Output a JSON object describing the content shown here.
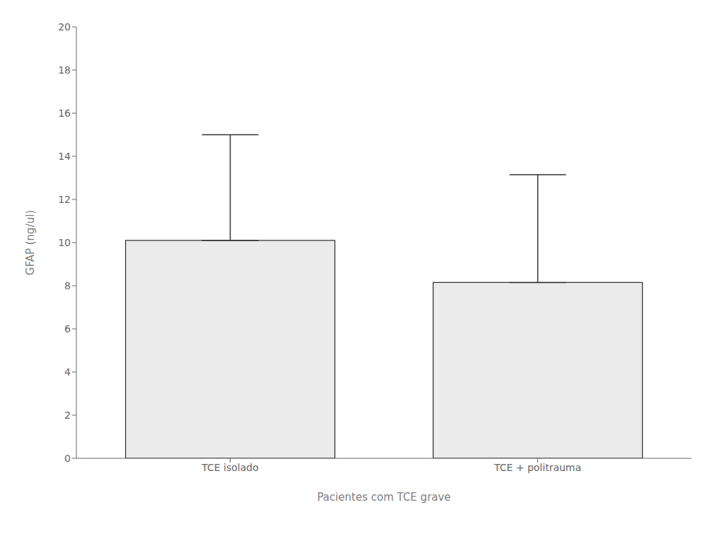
{
  "chart_data": {
    "type": "bar",
    "categories": [
      "TCE isolado",
      "TCE + politrauma"
    ],
    "values": [
      10.1,
      8.15
    ],
    "errors_upper": [
      4.9,
      5.0
    ],
    "color": "#ebebeb",
    "xlabel": "Pacientes com TCE grave",
    "ylabel": "GFAP (ng/ul)",
    "ylim": [
      0,
      20
    ],
    "yticks": [
      0,
      2,
      4,
      6,
      8,
      10,
      12,
      14,
      16,
      18,
      20
    ],
    "grid": false
  }
}
